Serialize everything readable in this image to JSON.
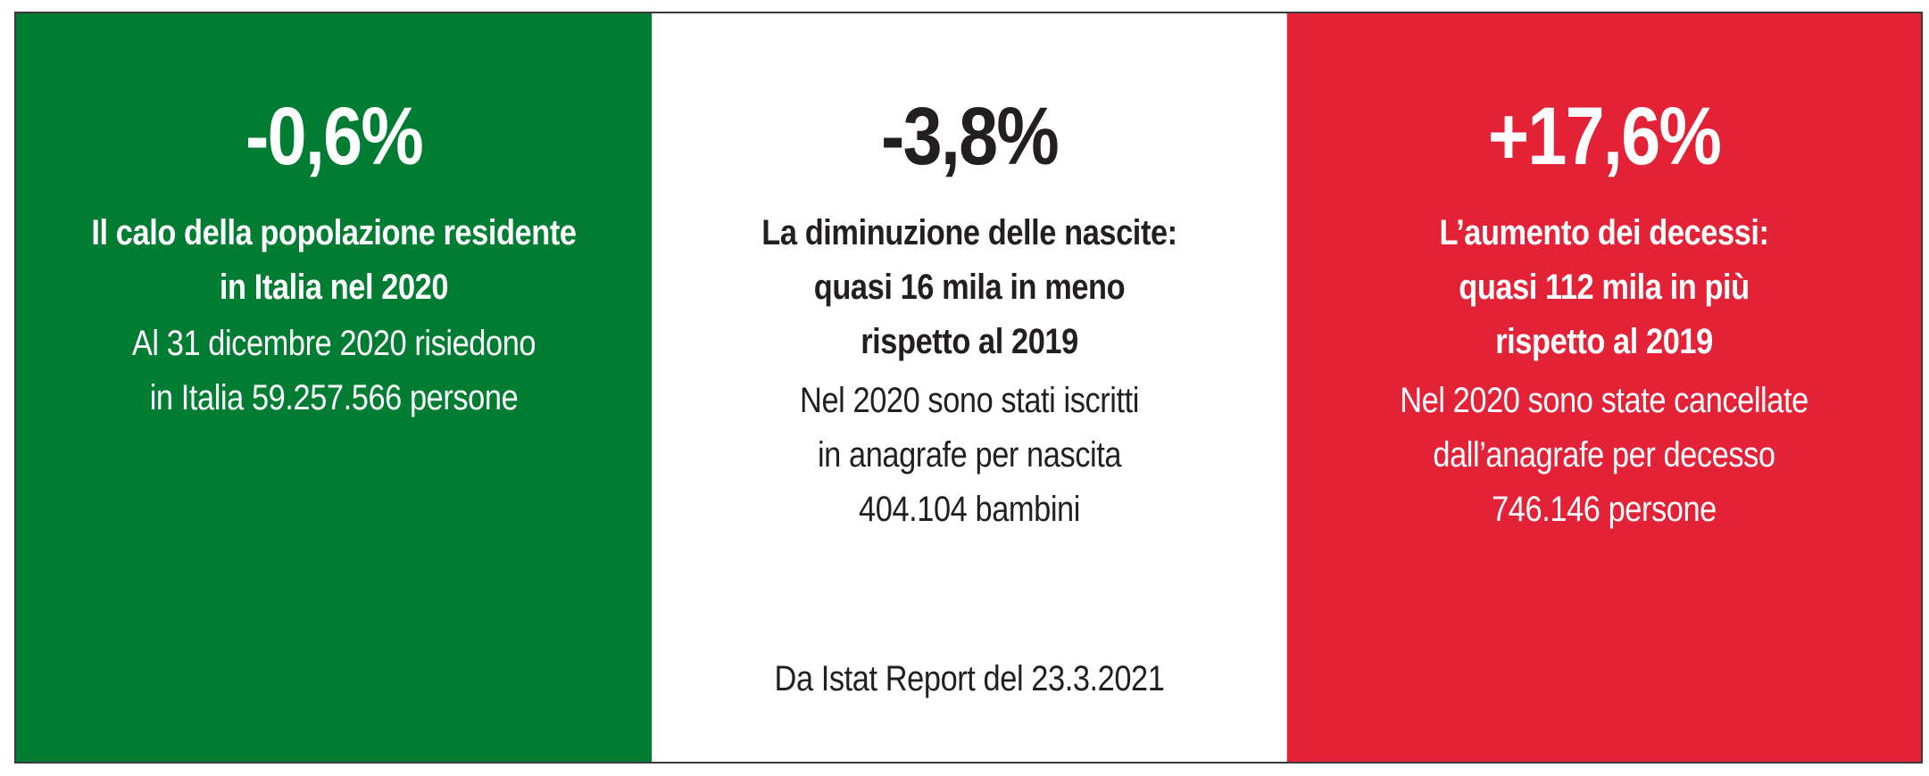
{
  "colors": {
    "green": "#007d32",
    "white": "#ffffff",
    "red": "#e32237",
    "dark_text": "#231f20",
    "light_text": "#ffffff"
  },
  "panels": [
    {
      "id": "population",
      "percent": "-0,6%",
      "lead_lines": [
        "Il calo della popolazione residente",
        "in Italia nel 2020"
      ],
      "detail_lines": [
        "Al 31 dicembre 2020 risiedono",
        "in Italia 59.257.566 persone"
      ]
    },
    {
      "id": "births",
      "percent": "-3,8%",
      "lead_lines": [
        "La diminuzione delle nascite:",
        "quasi 16 mila in meno",
        "rispetto al 2019"
      ],
      "detail_lines": [
        "Nel 2020 sono stati iscritti",
        "in anagrafe per nascita",
        "404.104 bambini"
      ],
      "source": "Da Istat Report del 23.3.2021"
    },
    {
      "id": "deaths",
      "percent": "+17,6%",
      "lead_lines": [
        "L’aumento dei decessi:",
        "quasi 112 mila in più",
        "rispetto al 2019"
      ],
      "detail_lines": [
        "Nel 2020 sono state cancellate",
        "dall’anagrafe per decesso",
        "746.146 persone"
      ]
    }
  ]
}
